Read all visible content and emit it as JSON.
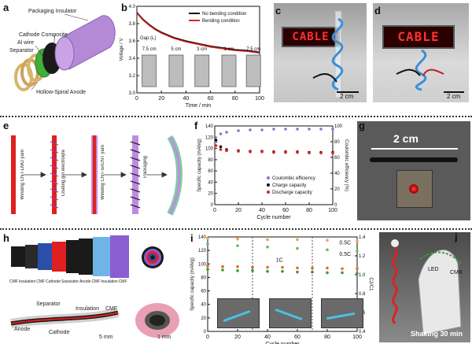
{
  "labels": {
    "a": "a",
    "b": "b",
    "c": "c",
    "d": "d",
    "e": "e",
    "f": "f",
    "g": "g",
    "h": "h",
    "i": "i",
    "j": "j"
  },
  "panel_a": {
    "layers": [
      "Packaging Insulator",
      "Cathode Composite",
      "Al wire",
      "Separator",
      "Hollow-Spiral Anode"
    ],
    "colors": {
      "insulator": "#b48ad6",
      "cathode": "#1a1a1a",
      "separator": "#3fae3a",
      "anode": "#d9b46a"
    }
  },
  "panel_c": {
    "sign": "CABLE",
    "scale": "2 cm"
  },
  "panel_d": {
    "sign": "CABLE",
    "scale": "2 cm"
  },
  "panel_e": {
    "steps": [
      "Winding CNT-LMO yarn",
      "Coating gel electrolyte",
      "Winding CNT-Si/CNT yarn",
      "Packaging"
    ]
  },
  "panel_g": {
    "scale": "2 cm"
  },
  "panel_h": {
    "layer_labels": [
      "CMF",
      "Insulation",
      "CMF",
      "Cathode",
      "Separator",
      "Anode",
      "CMF",
      "Insulation",
      "CMF"
    ],
    "photo_labels": [
      "Separator",
      "Insulation",
      "CMF",
      "Anode",
      "Cathode"
    ],
    "scales": [
      "5 mm",
      "1 mm"
    ]
  },
  "panel_j": {
    "labels": [
      "LED",
      "CMR"
    ],
    "caption": "Shaking 30 min"
  },
  "chart_data": [
    {
      "id": "b",
      "type": "line",
      "xlabel": "Time / min",
      "ylabel": "Voltage / V",
      "xlim": [
        0,
        100
      ],
      "ylim": [
        3.0,
        4.0
      ],
      "xticks": [
        0,
        20,
        40,
        60,
        80,
        100
      ],
      "yticks": [
        3.0,
        3.2,
        3.4,
        3.6,
        3.8,
        4.0
      ],
      "series": [
        {
          "name": "No bending condition",
          "color": "#111111",
          "x": [
            0,
            5,
            10,
            15,
            20,
            30,
            40,
            50,
            60,
            70,
            80,
            90,
            100
          ],
          "y": [
            3.93,
            3.85,
            3.79,
            3.74,
            3.7,
            3.64,
            3.6,
            3.57,
            3.54,
            3.52,
            3.5,
            3.49,
            3.47
          ]
        },
        {
          "name": "Bending condition",
          "color": "#e02020",
          "x": [
            0,
            5,
            10,
            15,
            20,
            30,
            40,
            50,
            60,
            70,
            80,
            90,
            100
          ],
          "y": [
            3.92,
            3.84,
            3.78,
            3.73,
            3.69,
            3.63,
            3.59,
            3.56,
            3.53,
            3.51,
            3.49,
            3.48,
            3.46
          ]
        }
      ],
      "annotations": [
        "Gap (L)",
        "7.5 cm",
        "5 cm",
        "3 cm",
        "1 cm",
        "7.5 cm"
      ]
    },
    {
      "id": "f",
      "type": "scatter",
      "xlabel": "Cycle number",
      "ylabel": "Specific capacity (mAh/g)",
      "y2label": "Coulombic efficiency (%)",
      "xlim": [
        0,
        100
      ],
      "ylim": [
        0,
        140
      ],
      "y2lim": [
        0,
        100
      ],
      "xticks": [
        0,
        20,
        40,
        60,
        80,
        100
      ],
      "yticks": [
        0,
        20,
        40,
        60,
        80,
        100,
        120,
        140
      ],
      "y2ticks": [
        0,
        20,
        40,
        60,
        80,
        100
      ],
      "series": [
        {
          "name": "Coulombic efficiency",
          "color": "#7b7bd6",
          "axis": "y2",
          "x": [
            1,
            5,
            10,
            20,
            30,
            40,
            50,
            60,
            70,
            80,
            90,
            100
          ],
          "y": [
            80,
            90,
            92,
            94,
            95,
            95,
            96,
            96,
            96,
            96,
            96,
            96
          ]
        },
        {
          "name": "Charge capacity",
          "color": "#111111",
          "axis": "y",
          "x": [
            1,
            5,
            10,
            20,
            30,
            40,
            50,
            60,
            70,
            80,
            90,
            100
          ],
          "y": [
            115,
            103,
            98,
            96,
            95,
            95,
            94,
            94,
            94,
            93,
            93,
            93
          ]
        },
        {
          "name": "Discharge capacity",
          "color": "#e02020",
          "axis": "y",
          "x": [
            1,
            5,
            10,
            20,
            30,
            40,
            50,
            60,
            70,
            80,
            90,
            100
          ],
          "y": [
            105,
            98,
            96,
            95,
            94,
            94,
            93,
            93,
            93,
            92,
            92,
            92
          ]
        }
      ]
    },
    {
      "id": "i",
      "type": "scatter",
      "xlabel": "Cycle number",
      "ylabel": "Specific capacity (mAh/g)",
      "y2label": "C2/C1",
      "xlim": [
        0,
        100
      ],
      "ylim": [
        0,
        140
      ],
      "y2lim": [
        0.4,
        1.4
      ],
      "xticks": [
        0,
        20,
        40,
        60,
        80,
        100
      ],
      "yticks": [
        0,
        20,
        40,
        60,
        80,
        100,
        120,
        140
      ],
      "y2ticks": [
        0.4,
        0.6,
        0.8,
        1.0,
        1.2,
        1.4
      ],
      "annotations": [
        "0.5C",
        "1C",
        "0.5C"
      ],
      "series": [
        {
          "name": "0.5C",
          "color": "#f0a050",
          "axis": "y",
          "x": [
            0,
            20,
            40,
            60,
            80,
            100
          ],
          "y": [
            138,
            137,
            136,
            136,
            135,
            134
          ]
        },
        {
          "name": "0.5C",
          "color": "#5cc05c",
          "axis": "y",
          "x": [
            0,
            20,
            40,
            60,
            80,
            100
          ],
          "y": [
            130,
            127,
            125,
            123,
            121,
            119
          ]
        },
        {
          "name": "1C",
          "color": "#e07020",
          "axis": "y",
          "x": [
            0,
            10,
            20,
            30,
            40,
            50,
            60,
            70,
            80,
            90,
            100
          ],
          "y": [
            97,
            96,
            96,
            95,
            95,
            95,
            94,
            94,
            94,
            93,
            93
          ]
        },
        {
          "name": "1C",
          "color": "#3a9a3a",
          "axis": "y",
          "x": [
            0,
            10,
            20,
            30,
            40,
            50,
            60,
            70,
            80,
            90,
            100
          ],
          "y": [
            92,
            91,
            90,
            90,
            89,
            89,
            88,
            88,
            87,
            87,
            86
          ]
        }
      ]
    }
  ]
}
